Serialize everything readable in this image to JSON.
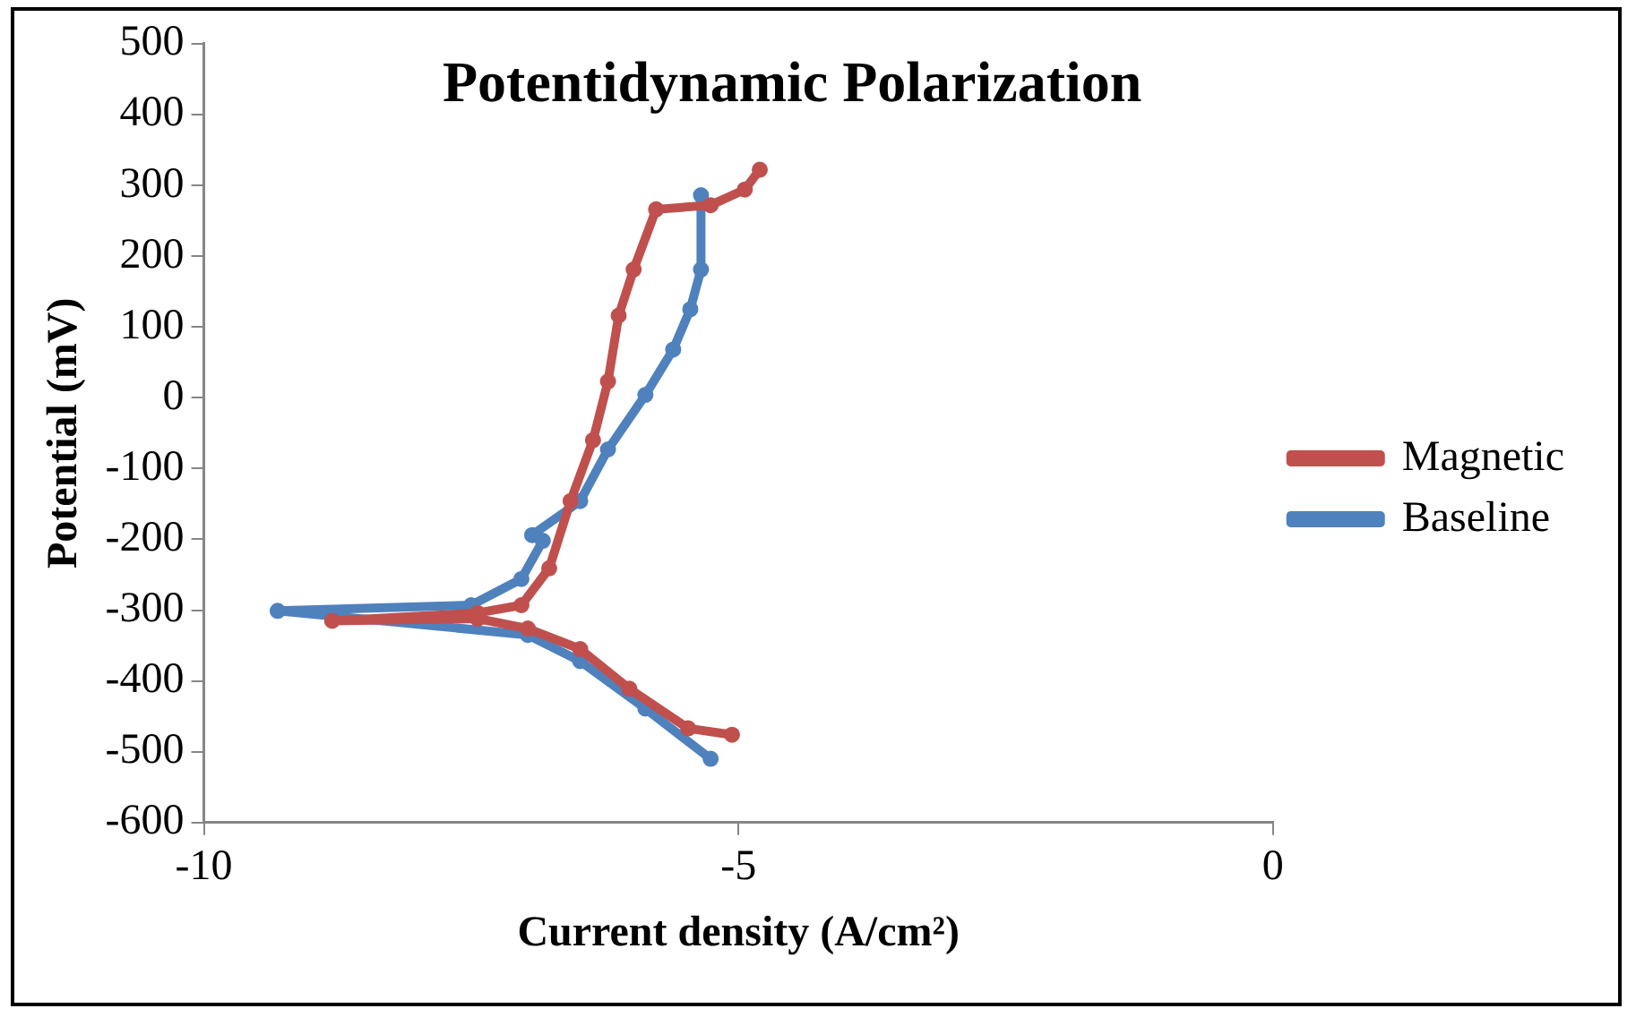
{
  "chart_data": {
    "type": "line",
    "title": "Potentidynamic Polarization",
    "xlabel": "Current density (A/cm²)",
    "ylabel": "Potential (mV)",
    "xlim": [
      -10,
      0
    ],
    "xticks": [
      -10,
      -5,
      0
    ],
    "ylim": [
      -600,
      500
    ],
    "yticks": [
      -600,
      -500,
      -400,
      -300,
      -200,
      -100,
      0,
      100,
      200,
      300,
      400,
      500
    ],
    "grid": false,
    "legend": "right",
    "marker": "circle",
    "line_style": "solid",
    "series": [
      {
        "name": "Magnetic",
        "color": "#c0504d",
        "x": [
          -5.06,
          -5.47,
          -6.02,
          -6.48,
          -6.97,
          -7.44,
          -8.8,
          -7.44,
          -7.03,
          -6.77,
          -6.57,
          -6.36,
          -6.22,
          -6.12,
          -5.98,
          -5.77,
          -5.26,
          -4.94,
          -4.8
        ],
        "values": [
          -476,
          -467,
          -411,
          -355,
          -326,
          -312,
          -315,
          -304,
          -293,
          -241,
          -146,
          -60,
          23,
          116,
          181,
          266,
          272,
          294,
          322
        ]
      },
      {
        "name": "Baseline",
        "color": "#4f81bd",
        "x": [
          -5.26,
          -5.87,
          -6.48,
          -6.97,
          -9.31,
          -7.5,
          -7.03,
          -6.83,
          -6.93,
          -6.48,
          -6.22,
          -5.87,
          -5.61,
          -5.45,
          -5.35,
          -5.35
        ],
        "values": [
          -510,
          -439,
          -372,
          -335,
          -301,
          -293,
          -256,
          -202,
          -194,
          -146,
          -73,
          4,
          68,
          125,
          181,
          286
        ]
      }
    ]
  }
}
